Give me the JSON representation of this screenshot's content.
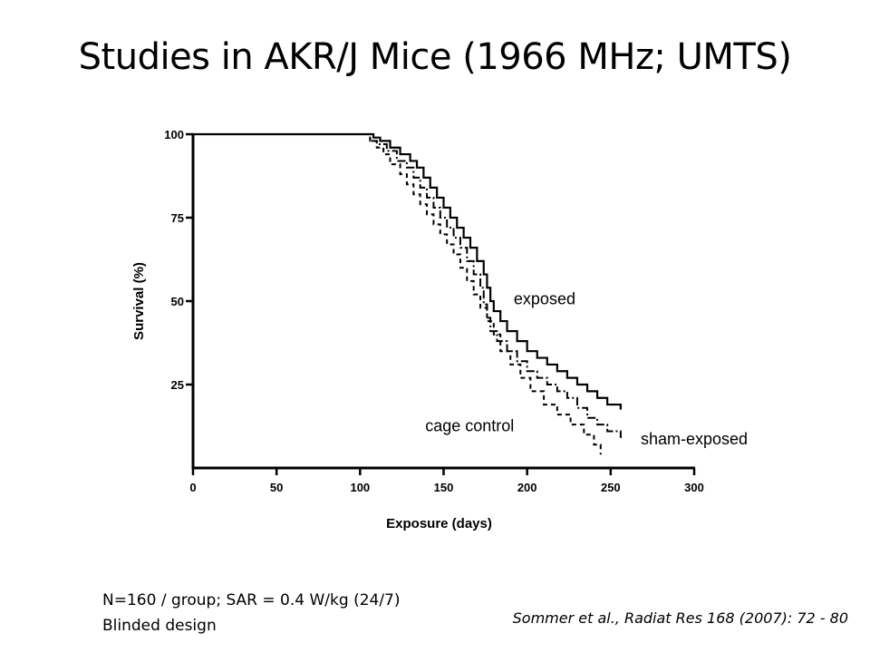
{
  "slide": {
    "title": "Studies in AKR/J Mice (1966 MHz; UMTS)",
    "note_line1": "N=160 / group; SAR = 0.4 W/kg (24/7)",
    "note_line2": "Blinded design",
    "citation": "Sommer et al., Radiat Res 168 (2007): 72 - 80"
  },
  "chart_data": {
    "type": "line",
    "step": true,
    "title": "",
    "xlabel": "Exposure (days)",
    "ylabel": "Survival (%)",
    "xlim": [
      0,
      300
    ],
    "ylim": [
      0,
      100
    ],
    "x_ticks": [
      0,
      50,
      100,
      150,
      200,
      250,
      300
    ],
    "y_ticks": [
      25,
      50,
      75,
      100
    ],
    "grid": false,
    "legend": "inline labels",
    "series": [
      {
        "name": "exposed",
        "style": "solid",
        "color": "#000000",
        "x": [
          0,
          106,
          108,
          112,
          118,
          124,
          130,
          134,
          138,
          142,
          146,
          150,
          154,
          158,
          162,
          166,
          170,
          174,
          176,
          178,
          180,
          184,
          188,
          194,
          200,
          206,
          212,
          218,
          224,
          230,
          236,
          242,
          248,
          256
        ],
        "y": [
          100,
          100,
          99,
          98,
          96,
          94,
          92,
          90,
          87,
          84,
          81,
          78,
          75,
          72,
          69,
          66,
          62,
          58,
          54,
          50,
          47,
          44,
          41,
          38,
          35,
          33,
          31,
          29,
          27,
          25,
          23,
          21,
          19,
          17.5
        ]
      },
      {
        "name": "sham-exposed",
        "style": "dash-dot",
        "color": "#000000",
        "x": [
          0,
          104,
          106,
          110,
          116,
          122,
          128,
          132,
          136,
          140,
          144,
          148,
          152,
          156,
          160,
          164,
          168,
          172,
          174,
          176,
          178,
          182,
          188,
          194,
          200,
          206,
          212,
          218,
          224,
          230,
          236,
          242,
          248,
          256
        ],
        "y": [
          100,
          100,
          98,
          97,
          95,
          92,
          90,
          87,
          84,
          81,
          78,
          75,
          72,
          69,
          66,
          62,
          58,
          54,
          49,
          45,
          41,
          38,
          35,
          32,
          29,
          27,
          25,
          23,
          21,
          18,
          15,
          13,
          11,
          9
        ]
      },
      {
        "name": "cage control",
        "style": "dashed",
        "color": "#000000",
        "x": [
          0,
          104,
          106,
          110,
          114,
          118,
          124,
          128,
          132,
          136,
          140,
          144,
          148,
          152,
          156,
          160,
          164,
          168,
          172,
          176,
          180,
          184,
          190,
          196,
          202,
          210,
          218,
          226,
          234,
          240,
          244
        ],
        "y": [
          100,
          100,
          98,
          96,
          94,
          91,
          88,
          85,
          82,
          79,
          76,
          73,
          70,
          67,
          64,
          60,
          56,
          52,
          48,
          44,
          40,
          35,
          31,
          27,
          23,
          19,
          16,
          13,
          10,
          7,
          4
        ]
      }
    ],
    "annotations": [
      {
        "text": "exposed",
        "x": 192,
        "y": 49
      },
      {
        "text": "cage control",
        "x": 139,
        "y": 11
      },
      {
        "text": "sham-exposed",
        "x": 268,
        "y": 7
      }
    ]
  }
}
